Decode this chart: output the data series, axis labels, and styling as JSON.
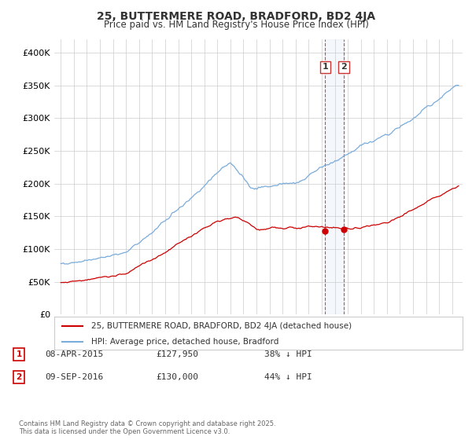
{
  "title": "25, BUTTERMERE ROAD, BRADFORD, BD2 4JA",
  "subtitle": "Price paid vs. HM Land Registry's House Price Index (HPI)",
  "line1_label": "25, BUTTERMERE ROAD, BRADFORD, BD2 4JA (detached house)",
  "line2_label": "HPI: Average price, detached house, Bradford",
  "line1_color": "#cc0000",
  "line2_color": "#7aacdb",
  "sale1_date": "08-APR-2015",
  "sale1_price": 127950,
  "sale1_hpi": "38% ↓ HPI",
  "sale1_label": "1",
  "sale2_date": "09-SEP-2016",
  "sale2_price": 130000,
  "sale2_hpi": "44% ↓ HPI",
  "sale2_label": "2",
  "sale1_year": 2015.27,
  "sale2_year": 2016.69,
  "ylim": [
    0,
    420000
  ],
  "yticks": [
    0,
    50000,
    100000,
    150000,
    200000,
    250000,
    300000,
    350000,
    400000
  ],
  "background_color": "#ffffff",
  "grid_color": "#cccccc",
  "footer": "Contains HM Land Registry data © Crown copyright and database right 2025.\nThis data is licensed under the Open Government Licence v3.0."
}
